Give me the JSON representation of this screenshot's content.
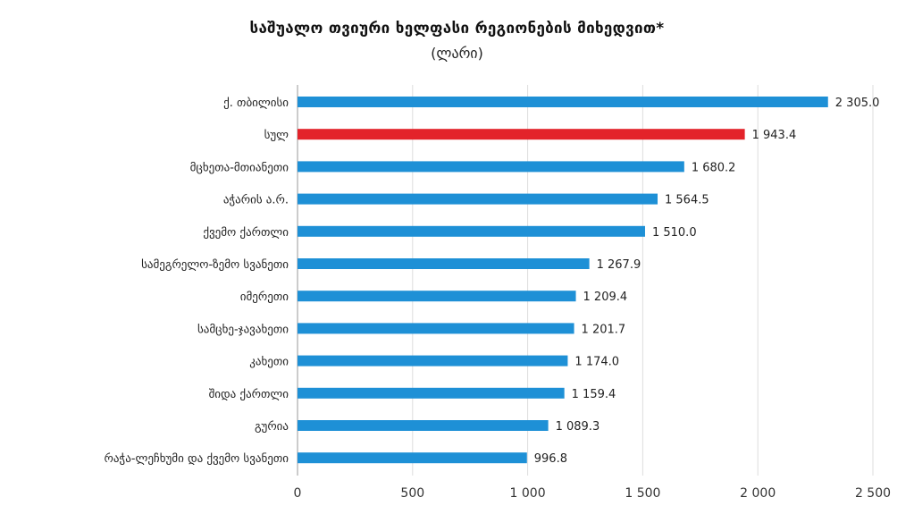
{
  "chart_data": {
    "type": "bar",
    "orientation": "horizontal",
    "title": "საშუალო თვიური ხელფასი რეგიონების მიხედვით*",
    "subtitle": "(ლარი)",
    "categories": [
      "ქ. თბილისი",
      "სულ",
      "მცხეთა-მთიანეთი",
      "აჭარის ა.რ.",
      "ქვემო ქართლი",
      "სამეგრელო-ზემო სვანეთი",
      "იმერეთი",
      "სამცხე-ჯავახეთი",
      "კახეთი",
      "შიდა ქართლი",
      "გურია",
      "რაჭა-ლეჩხუმი და ქვემო სვანეთი"
    ],
    "values": [
      2305.0,
      1943.4,
      1680.2,
      1564.5,
      1510.0,
      1267.9,
      1209.4,
      1201.7,
      1174.0,
      1159.4,
      1089.3,
      996.8
    ],
    "value_labels": [
      "2 305.0",
      "1 943.4",
      "1 680.2",
      "1 564.5",
      "1 510.0",
      "1 267.9",
      "1 209.4",
      "1 201.7",
      "1 174.0",
      "1 159.4",
      "1 089.3",
      "996.8"
    ],
    "xlim": [
      0,
      2500
    ],
    "xticks": [
      0,
      500,
      1000,
      1500,
      2000,
      2500
    ],
    "xtick_labels": [
      "0",
      "500",
      "1 000",
      "1 500",
      "2 000",
      "2 500"
    ],
    "grid": true,
    "colors": {
      "default": "#1e90d6",
      "highlight": "#e3232a",
      "grid": "#dddddd",
      "axis": "#999999"
    },
    "highlight_category": "სულ"
  }
}
